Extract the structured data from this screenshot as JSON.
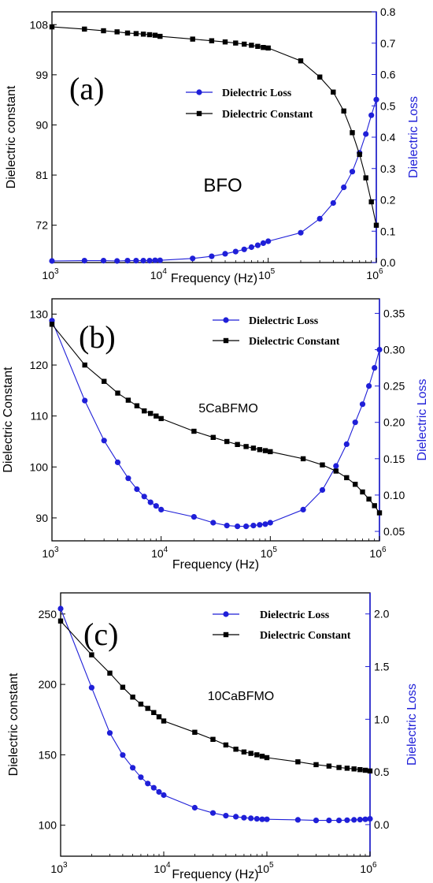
{
  "colors": {
    "loss": "#1f1fd8",
    "constant": "#000000"
  },
  "chart_data": [
    {
      "type": "line",
      "panel_label": "(a)",
      "annotation": "BFO",
      "xlabel": "Frequency (Hz)",
      "ylabel_left": "Dielectric constant",
      "ylabel_right": "Dielectric Loss",
      "xscale": "log",
      "xlim": [
        1000,
        1000000
      ],
      "x_ticks": [
        {
          "base": "10",
          "exp": "3"
        },
        {
          "base": "10",
          "exp": "4"
        },
        {
          "base": "10",
          "exp": "5"
        },
        {
          "base": "10",
          "exp": "6"
        }
      ],
      "ylim_left": [
        65.3,
        110.3
      ],
      "yticks_left": [
        "72",
        "81",
        "90",
        "99",
        "108"
      ],
      "ylim_right": [
        0,
        0.8
      ],
      "yticks_right": [
        "0.0",
        "0.1",
        "0.2",
        "0.3",
        "0.4",
        "0.5",
        "0.6",
        "0.7",
        "0.8"
      ],
      "legend_position": "center-right",
      "series": [
        {
          "name": "Dielectric Loss",
          "axis": "right",
          "marker": "circle",
          "color": "#1f1fd8",
          "x": [
            1000,
            2000,
            3000,
            4000,
            5000,
            6000,
            7000,
            8000,
            9000,
            10000,
            20000,
            30000,
            40000,
            50000,
            60000,
            70000,
            80000,
            90000,
            100000,
            200000,
            300000,
            400000,
            500000,
            600000,
            700000,
            800000,
            900000,
            1000000
          ],
          "y": [
            0.005,
            0.006,
            0.006,
            0.005,
            0.006,
            0.006,
            0.006,
            0.006,
            0.007,
            0.007,
            0.013,
            0.02,
            0.028,
            0.035,
            0.042,
            0.049,
            0.055,
            0.062,
            0.068,
            0.095,
            0.14,
            0.19,
            0.24,
            0.29,
            0.35,
            0.41,
            0.47,
            0.52
          ]
        },
        {
          "name": "Dielectric Constant",
          "axis": "left",
          "marker": "square",
          "color": "#000000",
          "x": [
            1000,
            2000,
            3000,
            4000,
            5000,
            6000,
            7000,
            8000,
            9000,
            10000,
            20000,
            30000,
            40000,
            50000,
            60000,
            70000,
            80000,
            90000,
            100000,
            200000,
            300000,
            400000,
            500000,
            600000,
            700000,
            800000,
            900000,
            1000000
          ],
          "y": [
            107.6,
            107.2,
            106.9,
            106.7,
            106.5,
            106.4,
            106.3,
            106.2,
            106.1,
            105.9,
            105.4,
            105.1,
            104.9,
            104.7,
            104.5,
            104.3,
            104.1,
            103.9,
            103.8,
            101.5,
            98.6,
            95.9,
            92.5,
            88.6,
            84.7,
            80.5,
            76.2,
            72.0
          ]
        }
      ]
    },
    {
      "type": "line",
      "panel_label": "(b)",
      "annotation": "5CaBFMO",
      "xlabel": "Frequency (Hz)",
      "ylabel_left": "Dielectric Constant",
      "ylabel_right": "Dielectric Loss",
      "xscale": "log",
      "xlim": [
        1000,
        1000000
      ],
      "x_ticks": [
        {
          "base": "10",
          "exp": "3"
        },
        {
          "base": "10",
          "exp": "4"
        },
        {
          "base": "10",
          "exp": "5"
        },
        {
          "base": "10",
          "exp": "6"
        }
      ],
      "ylim_left": [
        85.5,
        133
      ],
      "yticks_left": [
        "90",
        "100",
        "110",
        "120",
        "130"
      ],
      "ylim_right": [
        0.037,
        0.37
      ],
      "yticks_right": [
        "0.05",
        "0.10",
        "0.15",
        "0.20",
        "0.25",
        "0.30",
        "0.35"
      ],
      "legend_position": "top-right",
      "series": [
        {
          "name": "Dielectric Loss",
          "axis": "right",
          "marker": "circle",
          "color": "#1f1fd8",
          "x": [
            1000,
            2000,
            3000,
            4000,
            5000,
            6000,
            7000,
            8000,
            9000,
            10000,
            20000,
            30000,
            40000,
            50000,
            60000,
            70000,
            80000,
            90000,
            100000,
            200000,
            300000,
            400000,
            500000,
            600000,
            700000,
            800000,
            900000,
            1000000
          ],
          "y": [
            0.34,
            0.23,
            0.175,
            0.145,
            0.123,
            0.108,
            0.098,
            0.09,
            0.085,
            0.08,
            0.07,
            0.062,
            0.058,
            0.057,
            0.057,
            0.058,
            0.059,
            0.06,
            0.062,
            0.08,
            0.107,
            0.14,
            0.17,
            0.2,
            0.225,
            0.25,
            0.275,
            0.3
          ]
        },
        {
          "name": "Dielectric Constant",
          "axis": "left",
          "marker": "square",
          "color": "#000000",
          "x": [
            1000,
            2000,
            3000,
            4000,
            5000,
            6000,
            7000,
            8000,
            9000,
            10000,
            20000,
            30000,
            40000,
            50000,
            60000,
            70000,
            80000,
            90000,
            100000,
            200000,
            300000,
            400000,
            500000,
            600000,
            700000,
            800000,
            900000,
            1000000
          ],
          "y": [
            128,
            120,
            116.8,
            114.5,
            113.1,
            112,
            111,
            110.5,
            110,
            109.5,
            107,
            105.8,
            105,
            104.4,
            104,
            103.7,
            103.4,
            103.2,
            103,
            101.6,
            100.4,
            99.2,
            97.9,
            96.6,
            95.1,
            93.7,
            92.4,
            91
          ]
        }
      ]
    },
    {
      "type": "line",
      "panel_label": "(c)",
      "annotation": "10CaBFMO",
      "xlabel": "Frequency (Hz)",
      "ylabel_left": "Dielectric constant",
      "ylabel_right": "Dielectric Loss",
      "xscale": "log",
      "xlim": [
        1000,
        1000000
      ],
      "x_ticks": [
        {
          "base": "10",
          "exp": "3"
        },
        {
          "base": "10",
          "exp": "4"
        },
        {
          "base": "10",
          "exp": "5"
        },
        {
          "base": "10",
          "exp": "6"
        }
      ],
      "ylim_left": [
        78,
        265
      ],
      "yticks_left": [
        "100",
        "150",
        "200",
        "250"
      ],
      "ylim_right": [
        -0.3,
        2.2
      ],
      "yticks_right": [
        "0.0",
        "0.5",
        "1.0",
        "1.5",
        "2.0"
      ],
      "legend_position": "top-right",
      "series": [
        {
          "name": "Dielectric Loss",
          "axis": "right",
          "marker": "circle",
          "color": "#1f1fd8",
          "x": [
            1000,
            2000,
            3000,
            4000,
            5000,
            6000,
            7000,
            8000,
            9000,
            10000,
            20000,
            30000,
            40000,
            50000,
            60000,
            70000,
            80000,
            90000,
            100000,
            200000,
            300000,
            400000,
            500000,
            600000,
            700000,
            800000,
            900000,
            1000000
          ],
          "y": [
            2.05,
            1.3,
            0.87,
            0.66,
            0.54,
            0.45,
            0.39,
            0.35,
            0.31,
            0.28,
            0.16,
            0.11,
            0.085,
            0.075,
            0.065,
            0.06,
            0.055,
            0.05,
            0.05,
            0.045,
            0.04,
            0.04,
            0.04,
            0.042,
            0.045,
            0.047,
            0.05,
            0.055
          ]
        },
        {
          "name": "Dielectric Constant",
          "axis": "left",
          "marker": "square",
          "color": "#000000",
          "x": [
            1000,
            2000,
            3000,
            4000,
            5000,
            6000,
            7000,
            8000,
            9000,
            10000,
            20000,
            30000,
            40000,
            50000,
            60000,
            70000,
            80000,
            90000,
            100000,
            200000,
            300000,
            400000,
            500000,
            600000,
            700000,
            800000,
            900000,
            1000000
          ],
          "y": [
            245,
            221,
            208,
            198,
            191,
            186,
            183,
            180,
            177,
            174,
            166,
            161,
            157,
            154,
            152,
            151,
            150,
            149,
            148,
            145,
            143,
            142,
            141,
            140.5,
            140,
            139.5,
            139,
            138.5
          ]
        }
      ]
    }
  ]
}
